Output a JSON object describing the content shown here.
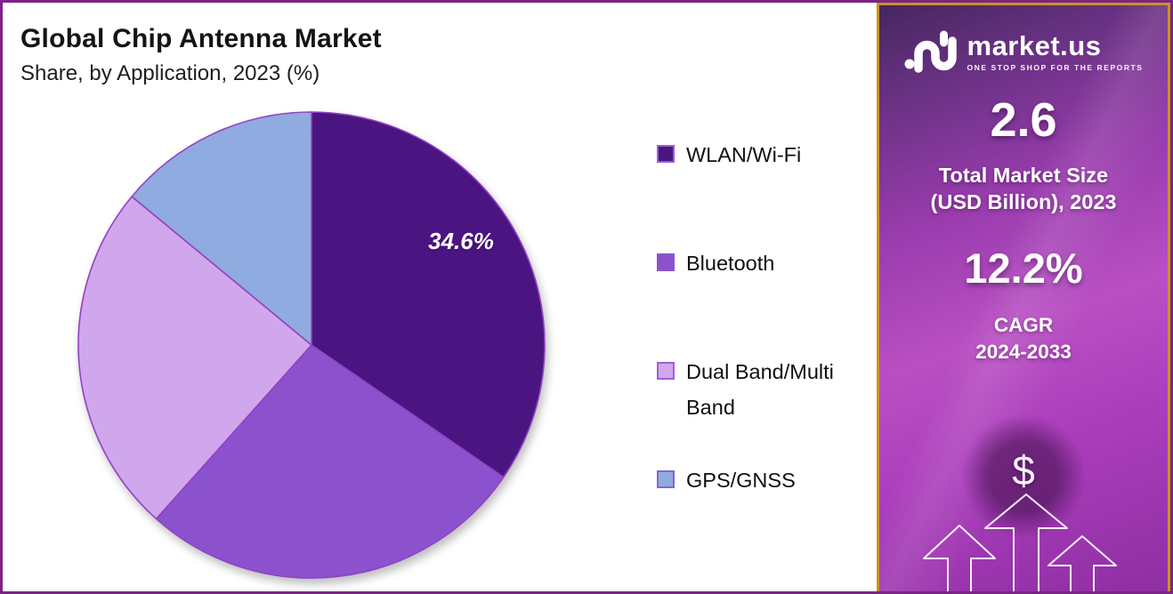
{
  "header": {
    "title": "Global Chip Antenna Market",
    "subtitle": "Share, by Application, 2023 (%)"
  },
  "chart_data": {
    "type": "pie",
    "title": "Global Chip Antenna Market Share, by Application, 2023 (%)",
    "unit": "%",
    "start_angle_deg": -90,
    "direction": "clockwise",
    "legend_position": "right",
    "slices": [
      {
        "label": "WLAN/Wi-Fi",
        "value": 34.6,
        "color": "#4a1580",
        "swatch_border": "#9c5bd8",
        "data_label": "34.6%",
        "estimated": false
      },
      {
        "label": "Bluetooth",
        "value": 27.0,
        "color": "#8c52ce",
        "swatch_border": "#8c52ce",
        "data_label": "",
        "estimated": true
      },
      {
        "label": "Dual Band/Multi Band",
        "value": 24.4,
        "color": "#d0a7ec",
        "swatch_border": "#a05fd8",
        "data_label": "",
        "estimated": true
      },
      {
        "label": "GPS/GNSS",
        "value": 14.0,
        "color": "#90abdf",
        "swatch_border": "#7b68d4",
        "data_label": "",
        "estimated": true
      }
    ],
    "note": "Only the WLAN/Wi-Fi slice shows a printed data label; other slice values estimated from arc angles.",
    "slice_stroke_color": "#9241c6"
  },
  "sidebar": {
    "logo": {
      "brand": "market.us",
      "tagline": "ONE STOP SHOP FOR THE REPORTS"
    },
    "market_size": {
      "value": "2.6",
      "label_line1": "Total Market Size",
      "label_line2": "(USD Billion), 2023"
    },
    "cagr": {
      "value": "12.2%",
      "label_line1": "CAGR",
      "label_line2": "2024-2033"
    },
    "dollar_symbol": "$"
  },
  "colors": {
    "outer_border": "#7a2486",
    "sidebar_border_gold": "#c9941f",
    "sidebar_dark_top": "#46265e",
    "sidebar_magenta": "#b94fc3",
    "title_text": "#141414",
    "pie_label_text": "#ffffff"
  }
}
